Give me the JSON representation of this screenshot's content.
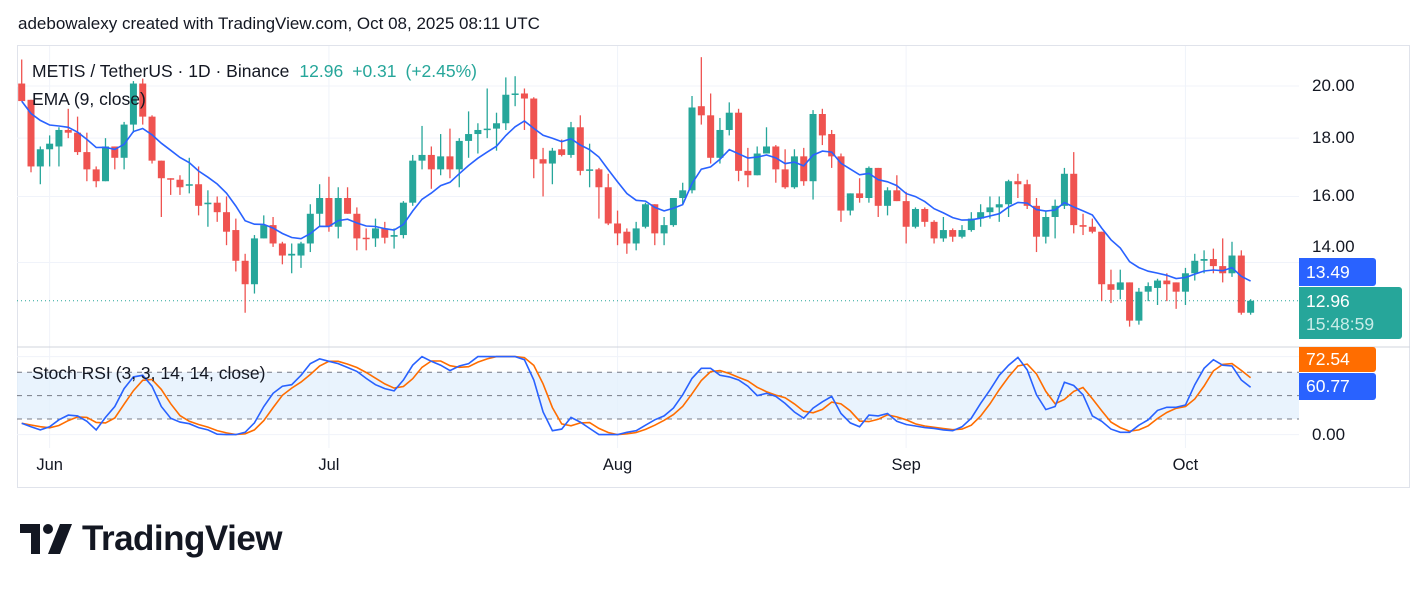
{
  "attribution": "adebowalexy created with TradingView.com, Oct 08, 2025 08:11 UTC",
  "legend": {
    "symbol": "METIS / TetherUS · 1D · Binance",
    "last": "12.96",
    "change": "+0.31",
    "change_pct": "(+2.45%)",
    "ema": "EMA (9, close)",
    "stoch": "Stoch RSI (3, 3, 14, 14, close)"
  },
  "badges": {
    "ema": "13.49",
    "price": "12.96",
    "countdown": "15:48:59",
    "stoch_d": "72.54",
    "stoch_k": "60.77"
  },
  "colors": {
    "up": "#26a69a",
    "down": "#ef5350",
    "ema": "#2962ff",
    "stoch_k": "#2962ff",
    "stoch_d": "#ff6d00"
  },
  "logo": {
    "text": "TradingView"
  },
  "chart_data": [
    {
      "type": "candlestick",
      "title": "METIS / TetherUS · 1D · Binance",
      "scale": "log",
      "ylim": [
        12.2,
        21.3
      ],
      "y_ticks": [
        "20.00",
        "18.00",
        "16.00",
        "14.00"
      ],
      "x_ticks": [
        "Jun",
        "Jul",
        "Aug",
        "Sep",
        "Oct"
      ],
      "x_tick_index": [
        3,
        33,
        64,
        95,
        125
      ],
      "grid": true,
      "indicator": "EMA (9, close)",
      "ohlc": [
        [
          20.1,
          21.1,
          19.4,
          19.4
        ],
        [
          19.45,
          19.45,
          16.8,
          17.0
        ],
        [
          17.0,
          17.7,
          16.4,
          17.6
        ],
        [
          17.6,
          18.1,
          17.0,
          17.8
        ],
        [
          17.7,
          18.4,
          17.0,
          18.3
        ],
        [
          18.3,
          19.1,
          18.0,
          18.2
        ],
        [
          18.2,
          18.8,
          17.4,
          17.5
        ],
        [
          17.5,
          18.2,
          16.5,
          16.9
        ],
        [
          16.9,
          17.0,
          16.3,
          16.5
        ],
        [
          16.5,
          18.0,
          16.5,
          17.7
        ],
        [
          17.7,
          17.7,
          16.9,
          17.3
        ],
        [
          17.3,
          18.6,
          16.9,
          18.5
        ],
        [
          18.5,
          20.2,
          18.2,
          20.1
        ],
        [
          20.1,
          20.3,
          18.5,
          18.8
        ],
        [
          18.8,
          18.85,
          17.1,
          17.2
        ],
        [
          17.2,
          17.2,
          15.35,
          16.6
        ],
        [
          16.6,
          16.6,
          16.05,
          16.55
        ],
        [
          16.55,
          16.7,
          16.05,
          16.3
        ],
        [
          16.35,
          17.3,
          16.1,
          16.4
        ],
        [
          16.4,
          17.0,
          15.4,
          15.7
        ],
        [
          15.75,
          16.2,
          15.05,
          15.8
        ],
        [
          15.8,
          16.0,
          15.2,
          15.5
        ],
        [
          15.5,
          16.0,
          14.5,
          14.9
        ],
        [
          14.95,
          15.3,
          13.75,
          14.05
        ],
        [
          14.05,
          14.25,
          12.65,
          13.4
        ],
        [
          13.4,
          14.8,
          13.15,
          14.7
        ],
        [
          14.7,
          15.4,
          14.7,
          15.1
        ],
        [
          15.1,
          15.35,
          14.45,
          14.55
        ],
        [
          14.55,
          14.6,
          13.95,
          14.2
        ],
        [
          14.2,
          14.55,
          13.7,
          14.25
        ],
        [
          14.2,
          14.6,
          13.85,
          14.55
        ],
        [
          14.55,
          15.75,
          14.3,
          15.45
        ],
        [
          15.45,
          16.4,
          15.05,
          15.95
        ],
        [
          15.95,
          16.65,
          14.9,
          15.05
        ],
        [
          15.05,
          16.3,
          14.7,
          15.95
        ],
        [
          15.95,
          16.3,
          15.45,
          15.45
        ],
        [
          15.45,
          15.65,
          14.35,
          14.7
        ],
        [
          14.72,
          15.0,
          14.35,
          14.7
        ],
        [
          14.7,
          15.3,
          14.45,
          15.0
        ],
        [
          15.0,
          15.2,
          14.55,
          14.72
        ],
        [
          14.75,
          15.0,
          14.4,
          14.8
        ],
        [
          14.8,
          15.85,
          14.7,
          15.8
        ],
        [
          15.8,
          17.4,
          15.7,
          17.2
        ],
        [
          17.2,
          18.45,
          16.9,
          17.4
        ],
        [
          17.4,
          17.7,
          16.25,
          16.9
        ],
        [
          16.9,
          18.15,
          16.7,
          17.35
        ],
        [
          17.35,
          18.35,
          16.6,
          16.9
        ],
        [
          16.9,
          18.0,
          16.3,
          17.9
        ],
        [
          17.9,
          19.0,
          17.3,
          18.15
        ],
        [
          18.15,
          18.55,
          17.45,
          18.3
        ],
        [
          18.3,
          19.9,
          18.0,
          18.35
        ],
        [
          18.35,
          18.95,
          17.55,
          18.55
        ],
        [
          18.55,
          20.35,
          18.3,
          19.65
        ],
        [
          19.65,
          20.4,
          19.2,
          19.7
        ],
        [
          19.7,
          19.9,
          18.3,
          19.5
        ],
        [
          19.5,
          19.55,
          16.6,
          17.25
        ],
        [
          17.25,
          17.65,
          16.0,
          17.1
        ],
        [
          17.1,
          17.65,
          16.4,
          17.55
        ],
        [
          17.6,
          17.95,
          17.35,
          17.4
        ],
        [
          17.4,
          18.6,
          17.3,
          18.4
        ],
        [
          18.4,
          18.85,
          16.7,
          16.85
        ],
        [
          16.85,
          17.8,
          16.3,
          16.9
        ],
        [
          16.9,
          16.95,
          15.3,
          16.3
        ],
        [
          16.3,
          16.75,
          15.1,
          15.15
        ],
        [
          15.15,
          15.55,
          14.5,
          14.85
        ],
        [
          14.9,
          15.0,
          14.25,
          14.55
        ],
        [
          14.55,
          15.2,
          14.35,
          15.0
        ],
        [
          15.05,
          15.8,
          15.0,
          15.75
        ],
        [
          15.75,
          15.75,
          14.5,
          14.85
        ],
        [
          14.85,
          15.35,
          14.5,
          15.1
        ],
        [
          15.1,
          15.95,
          15.05,
          15.95
        ],
        [
          15.95,
          16.45,
          15.75,
          16.2
        ],
        [
          16.2,
          19.6,
          16.1,
          19.15
        ],
        [
          19.2,
          21.2,
          18.5,
          18.85
        ],
        [
          18.85,
          19.7,
          17.1,
          17.3
        ],
        [
          17.3,
          18.75,
          17.1,
          18.3
        ],
        [
          18.3,
          19.35,
          18.1,
          18.95
        ],
        [
          18.95,
          19.1,
          16.5,
          16.85
        ],
        [
          16.85,
          17.65,
          16.3,
          16.7
        ],
        [
          16.7,
          17.7,
          16.7,
          17.45
        ],
        [
          17.45,
          18.4,
          17.45,
          17.7
        ],
        [
          17.7,
          17.75,
          16.45,
          16.9
        ],
        [
          16.9,
          17.6,
          16.25,
          16.3
        ],
        [
          16.3,
          17.6,
          16.25,
          17.35
        ],
        [
          17.35,
          17.65,
          16.35,
          16.5
        ],
        [
          16.5,
          19.05,
          15.9,
          18.9
        ],
        [
          18.9,
          19.1,
          17.75,
          18.1
        ],
        [
          18.15,
          18.3,
          16.95,
          17.35
        ],
        [
          17.35,
          17.45,
          15.2,
          15.55
        ],
        [
          15.55,
          16.1,
          15.4,
          16.1
        ],
        [
          16.1,
          16.6,
          15.8,
          15.95
        ],
        [
          15.95,
          17.0,
          15.8,
          16.95
        ],
        [
          16.95,
          16.95,
          15.35,
          15.7
        ],
        [
          15.7,
          16.3,
          15.4,
          16.2
        ],
        [
          16.2,
          16.7,
          15.85,
          15.85
        ],
        [
          15.85,
          16.15,
          14.55,
          15.05
        ],
        [
          15.05,
          15.65,
          15.0,
          15.6
        ],
        [
          15.6,
          15.65,
          15.05,
          15.2
        ],
        [
          15.2,
          15.25,
          14.55,
          14.7
        ],
        [
          14.7,
          15.35,
          14.6,
          14.95
        ],
        [
          14.95,
          15.0,
          14.6,
          14.75
        ],
        [
          14.75,
          15.1,
          14.7,
          14.95
        ],
        [
          14.95,
          15.5,
          14.9,
          15.3
        ],
        [
          15.3,
          15.75,
          15.05,
          15.5
        ],
        [
          15.5,
          16.0,
          15.3,
          15.65
        ],
        [
          15.65,
          16.0,
          15.2,
          15.75
        ],
        [
          15.75,
          16.55,
          15.35,
          16.5
        ],
        [
          16.5,
          16.75,
          15.95,
          16.4
        ],
        [
          16.4,
          16.55,
          15.6,
          15.7
        ],
        [
          15.7,
          15.95,
          14.3,
          14.75
        ],
        [
          14.75,
          15.55,
          14.55,
          15.35
        ],
        [
          15.35,
          15.9,
          14.7,
          15.7
        ],
        [
          15.7,
          16.95,
          15.6,
          16.75
        ],
        [
          16.75,
          17.5,
          14.85,
          15.1
        ],
        [
          15.1,
          15.45,
          14.8,
          15.05
        ],
        [
          15.05,
          15.3,
          14.85,
          14.9
        ],
        [
          14.9,
          14.9,
          12.95,
          13.4
        ],
        [
          13.4,
          13.8,
          12.9,
          13.25
        ],
        [
          13.25,
          13.8,
          13.0,
          13.45
        ],
        [
          13.45,
          13.45,
          12.3,
          12.45
        ],
        [
          12.45,
          13.3,
          12.35,
          13.2
        ],
        [
          13.2,
          13.45,
          12.95,
          13.35
        ],
        [
          13.3,
          13.55,
          12.85,
          13.5
        ],
        [
          13.5,
          13.7,
          12.95,
          13.4
        ],
        [
          13.45,
          13.45,
          12.75,
          13.2
        ],
        [
          13.2,
          13.85,
          12.85,
          13.7
        ],
        [
          13.7,
          14.25,
          13.5,
          14.05
        ],
        [
          14.05,
          14.35,
          13.7,
          14.1
        ],
        [
          14.1,
          14.4,
          13.7,
          13.9
        ],
        [
          13.9,
          14.7,
          13.45,
          13.7
        ],
        [
          13.7,
          14.6,
          13.6,
          14.2
        ],
        [
          14.2,
          14.35,
          12.6,
          12.65
        ],
        [
          12.65,
          13.0,
          12.6,
          12.96
        ]
      ]
    },
    {
      "type": "line",
      "title": "Stoch RSI (3, 3, 14, 14, close)",
      "ylim": [
        0,
        100
      ],
      "y_ticks": [
        "0.00"
      ],
      "bands": [
        20,
        50,
        80
      ],
      "k": [
        14.5,
        10,
        6,
        10,
        19,
        25,
        24,
        17,
        6,
        22,
        36,
        59,
        74,
        76,
        62,
        36,
        21,
        16,
        14,
        9,
        6,
        0.5,
        0,
        0,
        3,
        15,
        36,
        53,
        62,
        64,
        76,
        91,
        97,
        94,
        91,
        86,
        81,
        72,
        64,
        59,
        56,
        70,
        89,
        100,
        94,
        89,
        82,
        88,
        91,
        100,
        100,
        100,
        100,
        100,
        96,
        70,
        29,
        5,
        7,
        22,
        16,
        8,
        0,
        0,
        0,
        3,
        5,
        12,
        19,
        24,
        34,
        51,
        72,
        85,
        85,
        76,
        74,
        70,
        62,
        50,
        53,
        49,
        40,
        29,
        21,
        34,
        42,
        49,
        27,
        15,
        10,
        25,
        24,
        27,
        17,
        13,
        11,
        9,
        8,
        6,
        5,
        10,
        21,
        40,
        57,
        76,
        89,
        99,
        83,
        51,
        32,
        36,
        67,
        63,
        51,
        24,
        17,
        7,
        3,
        3,
        12,
        19,
        31,
        35,
        35,
        38,
        64,
        85,
        96,
        89,
        88,
        70,
        60.77
      ]
    }
  ]
}
